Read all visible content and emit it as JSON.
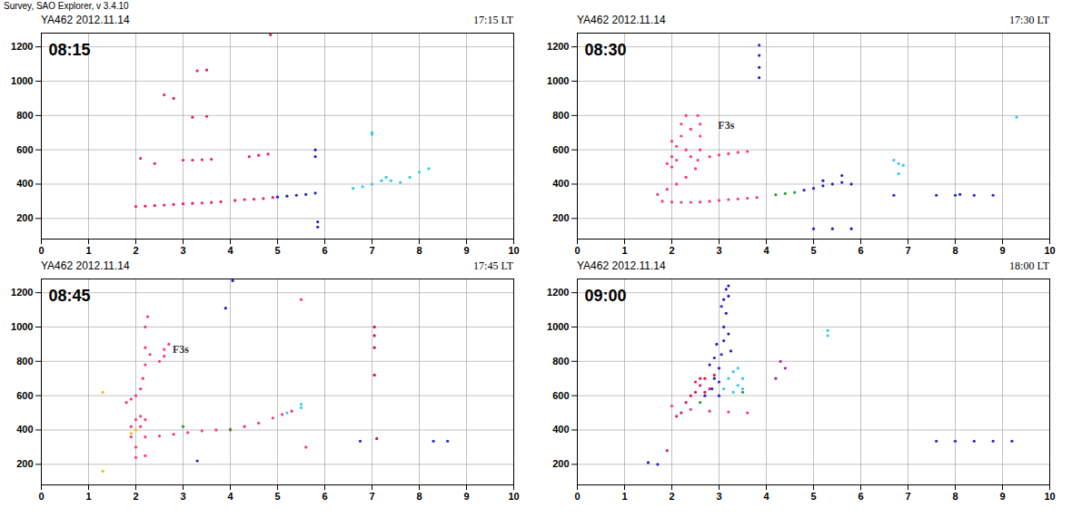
{
  "header": "Survey, SAO Explorer, v 3.4.10",
  "chart_data": [
    {
      "type": "scatter",
      "title": "YA462 2012.11.14",
      "subtitle": "17:15 LT",
      "xlim": [
        0,
        10
      ],
      "ylim": [
        80,
        1280
      ],
      "xticks": [
        0,
        1,
        2,
        3,
        4,
        5,
        6,
        7,
        8,
        9,
        10
      ],
      "yticks": [
        200,
        400,
        600,
        800,
        1000,
        1200
      ],
      "grid": true,
      "annotations": [
        {
          "text": "08:15"
        }
      ],
      "series": [
        {
          "color": "#ee1f5a",
          "x": [
            2.0,
            2.2,
            2.4,
            2.6,
            2.8,
            3.0,
            3.2,
            3.4,
            3.6,
            3.8,
            4.1,
            4.3,
            4.5,
            4.7,
            4.9,
            3.0,
            3.2,
            3.4,
            3.6,
            4.4,
            4.6,
            4.8,
            2.6,
            3.3,
            3.5,
            3.2,
            3.5,
            2.8,
            4.85,
            2.1,
            2.4
          ],
          "y": [
            270,
            272,
            275,
            278,
            282,
            285,
            288,
            290,
            293,
            298,
            305,
            310,
            312,
            316,
            322,
            540,
            540,
            542,
            545,
            560,
            568,
            575,
            920,
            1060,
            1065,
            790,
            795,
            900,
            1270,
            550,
            520
          ]
        },
        {
          "color": "#2020c8",
          "x": [
            5.0,
            5.2,
            5.4,
            5.6,
            5.8,
            5.8,
            5.8,
            5.85,
            5.85
          ],
          "y": [
            325,
            330,
            335,
            340,
            348,
            600,
            560,
            150,
            180
          ]
        },
        {
          "color": "#30c8ee",
          "x": [
            6.6,
            6.8,
            7.0,
            7.2,
            7.3,
            7.4,
            7.6,
            7.8,
            8.0,
            8.2,
            7.0,
            7.0
          ],
          "y": [
            375,
            385,
            400,
            420,
            440,
            420,
            410,
            440,
            470,
            490,
            700,
            690
          ]
        }
      ]
    },
    {
      "type": "scatter",
      "title": "YA462 2012.11.14",
      "subtitle": "17:30 LT",
      "xlim": [
        0,
        10
      ],
      "ylim": [
        80,
        1280
      ],
      "xticks": [
        0,
        1,
        2,
        3,
        4,
        5,
        6,
        7,
        8,
        9,
        10
      ],
      "yticks": [
        200,
        400,
        600,
        800,
        1000,
        1200
      ],
      "grid": true,
      "annotations": [
        {
          "text": "08:30"
        },
        {
          "text": "F3s",
          "x": 3.15,
          "y": 740
        }
      ],
      "series": [
        {
          "color": "#ff3377",
          "x": [
            1.8,
            2.0,
            2.2,
            2.4,
            2.6,
            2.8,
            3.0,
            3.2,
            3.4,
            3.6,
            3.8,
            1.7,
            1.9,
            2.1,
            2.3,
            2.5,
            2.55,
            2.6,
            2.6,
            2.6,
            2.55,
            2.0,
            2.0,
            2.1,
            2.2,
            2.2,
            2.3,
            2.1,
            2.3,
            2.4,
            2.4,
            1.9,
            2.0,
            2.8,
            3.0,
            3.2,
            3.4,
            3.6
          ],
          "y": [
            300,
            296,
            294,
            294,
            296,
            300,
            305,
            310,
            314,
            318,
            322,
            340,
            370,
            400,
            440,
            490,
            540,
            600,
            680,
            750,
            800,
            500,
            560,
            620,
            680,
            750,
            800,
            540,
            600,
            560,
            720,
            520,
            650,
            560,
            570,
            578,
            585,
            590
          ]
        },
        {
          "color": "#2020c8",
          "x": [
            4.8,
            5.0,
            5.2,
            5.4,
            5.6,
            5.8,
            5.2,
            5.6,
            3.85,
            3.85,
            3.85,
            3.85,
            6.7,
            7.6,
            8.0,
            8.1,
            8.4,
            8.8,
            5.0,
            5.4,
            5.8
          ],
          "y": [
            365,
            375,
            390,
            400,
            410,
            400,
            420,
            450,
            1020,
            1080,
            1150,
            1210,
            335,
            335,
            335,
            340,
            335,
            335,
            140,
            140,
            140
          ]
        },
        {
          "color": "#2a9a3a",
          "x": [
            4.2,
            4.4,
            4.6
          ],
          "y": [
            338,
            345,
            352
          ]
        },
        {
          "color": "#30c8ee",
          "x": [
            6.7,
            6.8,
            6.9,
            6.8,
            9.3
          ],
          "y": [
            540,
            520,
            510,
            460,
            790
          ]
        }
      ]
    },
    {
      "type": "scatter",
      "title": "YA462 2012.11.14",
      "subtitle": "17:45 LT",
      "xlim": [
        0,
        10
      ],
      "ylim": [
        80,
        1280
      ],
      "xticks": [
        0,
        1,
        2,
        3,
        4,
        5,
        6,
        7,
        8,
        9,
        10
      ],
      "yticks": [
        200,
        400,
        600,
        800,
        1000,
        1200
      ],
      "grid": true,
      "annotations": [
        {
          "text": "08:45"
        },
        {
          "text": "F3s",
          "x": 2.95,
          "y": 870
        }
      ],
      "series": [
        {
          "color": "#ff3377",
          "x": [
            1.9,
            2.2,
            2.5,
            2.8,
            3.1,
            3.4,
            3.7,
            4.0,
            4.3,
            4.6,
            4.9,
            5.1,
            5.3,
            1.8,
            1.9,
            2.0,
            2.1,
            2.15,
            2.2,
            2.2,
            2.2,
            2.25,
            2.3,
            2.5,
            2.6,
            2.7,
            2.6,
            1.9,
            2.0,
            2.1,
            2.1,
            2.2,
            2.0,
            2.2,
            2.0,
            5.6,
            5.5
          ],
          "y": [
            360,
            360,
            365,
            375,
            385,
            395,
            400,
            405,
            420,
            440,
            470,
            490,
            510,
            560,
            580,
            600,
            640,
            700,
            780,
            880,
            1000,
            1060,
            840,
            800,
            830,
            900,
            870,
            420,
            460,
            420,
            480,
            460,
            240,
            250,
            300,
            300,
            1160
          ]
        },
        {
          "color": "#30c8ee",
          "x": [
            5.2,
            5.5,
            5.5
          ],
          "y": [
            500,
            530,
            550
          ]
        },
        {
          "color": "#2a9a3a",
          "x": [
            3.0,
            4.0
          ],
          "y": [
            420,
            400
          ]
        },
        {
          "color": "#e8c020",
          "x": [
            1.9,
            2.0,
            1.3,
            1.3
          ],
          "y": [
            380,
            400,
            160,
            620
          ]
        },
        {
          "color": "#d0103a",
          "x": [
            7.05,
            7.05,
            7.05,
            7.05,
            7.1
          ],
          "y": [
            1000,
            950,
            880,
            720,
            350
          ]
        },
        {
          "color": "#2020c8",
          "x": [
            8.3,
            8.6,
            6.75,
            3.9,
            4.05,
            3.3
          ],
          "y": [
            335,
            335,
            335,
            1110,
            1270,
            220
          ]
        }
      ]
    },
    {
      "type": "scatter",
      "title": "YA462 2012.11.14",
      "subtitle": "18:00 LT",
      "xlim": [
        0,
        10
      ],
      "ylim": [
        80,
        1280
      ],
      "xticks": [
        0,
        1,
        2,
        3,
        4,
        5,
        6,
        7,
        8,
        9,
        10
      ],
      "yticks": [
        200,
        400,
        600,
        800,
        1000,
        1200
      ],
      "grid": true,
      "annotations": [
        {
          "text": "09:00"
        }
      ],
      "series": [
        {
          "color": "#2020c8",
          "x": [
            3.0,
            3.0,
            3.0,
            3.05,
            3.1,
            3.1,
            3.15,
            3.1,
            3.2,
            2.9,
            2.9,
            2.95,
            3.2,
            3.2,
            2.8,
            3.05,
            3.15,
            2.85,
            2.7,
            3.25,
            7.6,
            8.0,
            8.4,
            8.8,
            9.2,
            1.5,
            1.7
          ],
          "y": [
            600,
            680,
            760,
            840,
            920,
            1000,
            1080,
            1160,
            1240,
            700,
            820,
            900,
            960,
            1180,
            780,
            1120,
            1220,
            640,
            600,
            860,
            335,
            335,
            335,
            335,
            335,
            210,
            200
          ]
        },
        {
          "color": "#e01848",
          "x": [
            2.5,
            2.6,
            2.7,
            2.8,
            2.6,
            2.9,
            2.4,
            2.3,
            2.5,
            2.7,
            2.2,
            2.1,
            1.9
          ],
          "y": [
            620,
            660,
            700,
            640,
            700,
            720,
            600,
            560,
            680,
            620,
            500,
            480,
            280
          ]
        },
        {
          "color": "#ff3377",
          "x": [
            2.0,
            2.4,
            2.8,
            3.2,
            3.6
          ],
          "y": [
            540,
            520,
            510,
            505,
            500
          ]
        },
        {
          "color": "#30c8ee",
          "x": [
            3.1,
            3.2,
            3.3,
            3.4,
            3.5,
            3.3,
            3.5,
            3.4,
            5.3,
            5.3
          ],
          "y": [
            640,
            700,
            740,
            660,
            700,
            620,
            640,
            760,
            980,
            950
          ]
        },
        {
          "color": "#9a2aa0",
          "x": [
            4.3,
            4.4,
            4.2
          ],
          "y": [
            800,
            760,
            700
          ]
        },
        {
          "color": "#2a9a3a",
          "x": [
            2.6,
            3.5
          ],
          "y": [
            560,
            620
          ]
        }
      ]
    }
  ]
}
